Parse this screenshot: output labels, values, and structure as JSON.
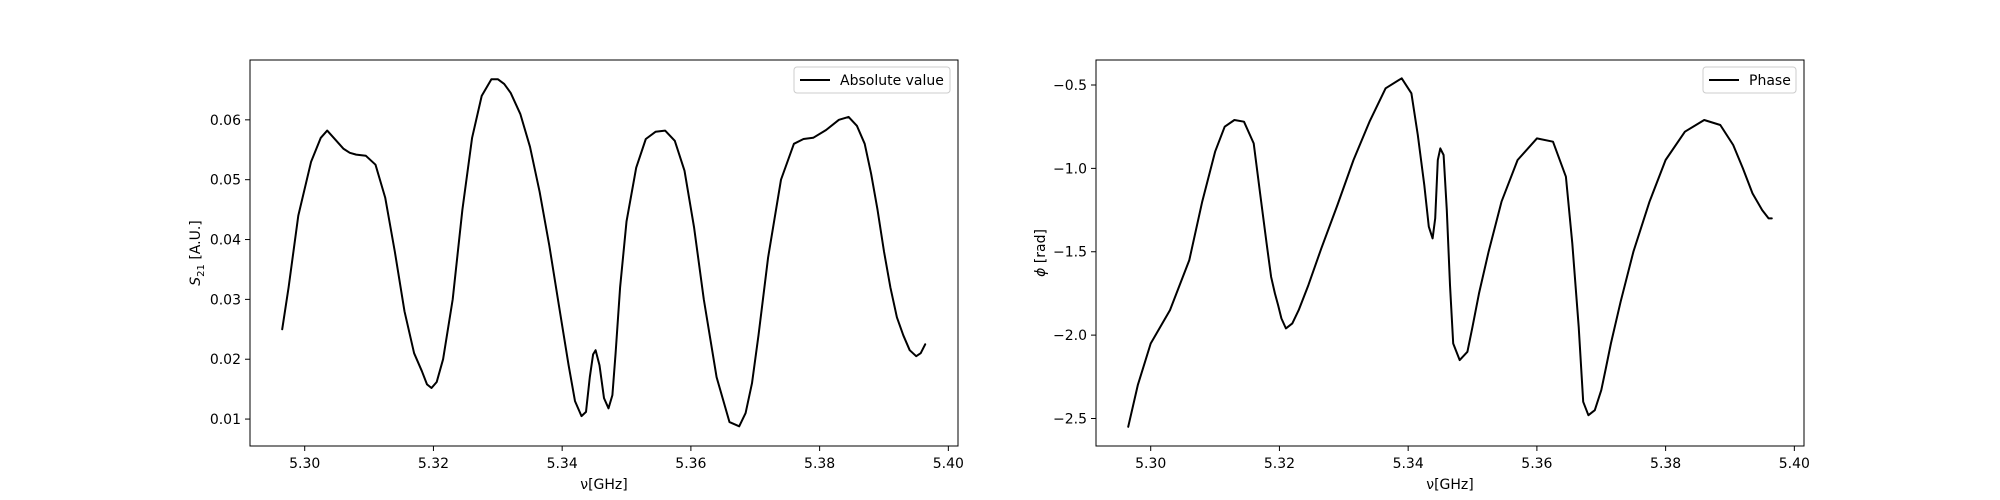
{
  "chart_data": [
    {
      "type": "line",
      "xlabel": "ν[GHz]",
      "ylabel": "S21 [A.U.]",
      "ylabel_main": "S",
      "ylabel_sub": "21",
      "ylabel_unit": " [A.U.]",
      "xlim": [
        5.2915,
        5.4015
      ],
      "ylim": [
        0.0055,
        0.07
      ],
      "xticks": [
        5.3,
        5.32,
        5.34,
        5.36,
        5.38,
        5.4
      ],
      "xtick_labels": [
        "5.30",
        "5.32",
        "5.34",
        "5.36",
        "5.38",
        "5.40"
      ],
      "yticks": [
        0.01,
        0.02,
        0.03,
        0.04,
        0.05,
        0.06
      ],
      "ytick_labels": [
        "0.01",
        "0.02",
        "0.03",
        "0.04",
        "0.05",
        "0.06"
      ],
      "legend": "Absolute value",
      "legend_loc": "upper right",
      "series": [
        {
          "name": "Absolute value",
          "color": "#000000",
          "x": [
            5.2965,
            5.2975,
            5.299,
            5.301,
            5.3025,
            5.3035,
            5.3045,
            5.306,
            5.307,
            5.308,
            5.3095,
            5.311,
            5.3125,
            5.314,
            5.3155,
            5.317,
            5.3182,
            5.319,
            5.3197,
            5.3205,
            5.3215,
            5.323,
            5.3245,
            5.326,
            5.3275,
            5.329,
            5.33,
            5.331,
            5.332,
            5.3335,
            5.335,
            5.3365,
            5.338,
            5.3395,
            5.341,
            5.342,
            5.343,
            5.3437,
            5.3443,
            5.3448,
            5.3452,
            5.3458,
            5.3465,
            5.3472,
            5.3478,
            5.3483,
            5.349,
            5.35,
            5.3515,
            5.353,
            5.3545,
            5.356,
            5.3575,
            5.359,
            5.3605,
            5.362,
            5.364,
            5.366,
            5.3675,
            5.3685,
            5.3695,
            5.3705,
            5.372,
            5.374,
            5.376,
            5.3775,
            5.379,
            5.381,
            5.383,
            5.3845,
            5.3858,
            5.387,
            5.388,
            5.389,
            5.39,
            5.391,
            5.392,
            5.393,
            5.394,
            5.395,
            5.3957,
            5.3964
          ],
          "y": [
            0.025,
            0.032,
            0.044,
            0.053,
            0.057,
            0.0582,
            0.057,
            0.0552,
            0.0545,
            0.0542,
            0.054,
            0.0525,
            0.047,
            0.038,
            0.028,
            0.021,
            0.018,
            0.0158,
            0.0152,
            0.0162,
            0.02,
            0.03,
            0.045,
            0.057,
            0.064,
            0.0668,
            0.0668,
            0.066,
            0.0645,
            0.061,
            0.0555,
            0.048,
            0.039,
            0.029,
            0.019,
            0.013,
            0.0105,
            0.0112,
            0.017,
            0.0208,
            0.0215,
            0.019,
            0.0135,
            0.0118,
            0.014,
            0.021,
            0.032,
            0.043,
            0.052,
            0.0568,
            0.058,
            0.0582,
            0.0565,
            0.0515,
            0.042,
            0.03,
            0.017,
            0.0095,
            0.0088,
            0.011,
            0.016,
            0.024,
            0.037,
            0.05,
            0.056,
            0.0568,
            0.057,
            0.0583,
            0.06,
            0.0605,
            0.059,
            0.056,
            0.051,
            0.045,
            0.038,
            0.032,
            0.027,
            0.024,
            0.0215,
            0.0205,
            0.021,
            0.0225
          ]
        }
      ]
    },
    {
      "type": "line",
      "xlabel": "ν[GHz]",
      "ylabel": "ϕ [rad]",
      "ylabel_main": "ϕ",
      "ylabel_sub": "",
      "ylabel_unit": " [rad]",
      "xlim": [
        5.2915,
        5.4015
      ],
      "ylim": [
        -2.665,
        -0.35
      ],
      "xticks": [
        5.3,
        5.32,
        5.34,
        5.36,
        5.38,
        5.4
      ],
      "xtick_labels": [
        "5.30",
        "5.32",
        "5.34",
        "5.36",
        "5.38",
        "5.40"
      ],
      "yticks": [
        -2.5,
        -2.0,
        -1.5,
        -1.0,
        -0.5
      ],
      "ytick_labels": [
        "−2.5",
        "−2.0",
        "−1.5",
        "−1.0",
        "−0.5"
      ],
      "legend": "Phase",
      "legend_loc": "upper right",
      "series": [
        {
          "name": "Phase",
          "color": "#000000",
          "x": [
            5.2965,
            5.298,
            5.3,
            5.303,
            5.306,
            5.308,
            5.31,
            5.3115,
            5.313,
            5.3145,
            5.316,
            5.317,
            5.318,
            5.3187,
            5.3193,
            5.3198,
            5.3203,
            5.321,
            5.322,
            5.323,
            5.3245,
            5.3265,
            5.329,
            5.3315,
            5.334,
            5.3365,
            5.339,
            5.3405,
            5.3415,
            5.3425,
            5.3432,
            5.3438,
            5.3442,
            5.3446,
            5.345,
            5.3455,
            5.346,
            5.3465,
            5.347,
            5.348,
            5.3492,
            5.35,
            5.351,
            5.3525,
            5.3545,
            5.357,
            5.36,
            5.3625,
            5.3645,
            5.3655,
            5.3665,
            5.3672,
            5.368,
            5.369,
            5.37,
            5.3707,
            5.3715,
            5.373,
            5.375,
            5.3775,
            5.38,
            5.383,
            5.386,
            5.3885,
            5.3905,
            5.392,
            5.3935,
            5.395,
            5.396,
            5.3965
          ],
          "y": [
            -2.55,
            -2.3,
            -2.05,
            -1.85,
            -1.55,
            -1.2,
            -0.9,
            -0.75,
            -0.71,
            -0.72,
            -0.85,
            -1.15,
            -1.45,
            -1.65,
            -1.75,
            -1.82,
            -1.9,
            -1.96,
            -1.93,
            -1.85,
            -1.7,
            -1.48,
            -1.22,
            -0.95,
            -0.72,
            -0.52,
            -0.46,
            -0.55,
            -0.8,
            -1.1,
            -1.35,
            -1.42,
            -1.3,
            -0.95,
            -0.88,
            -0.92,
            -1.25,
            -1.7,
            -2.05,
            -2.15,
            -2.1,
            -1.95,
            -1.75,
            -1.5,
            -1.2,
            -0.95,
            -0.82,
            -0.84,
            -1.05,
            -1.45,
            -1.95,
            -2.4,
            -2.48,
            -2.45,
            -2.33,
            -2.2,
            -2.05,
            -1.8,
            -1.5,
            -1.2,
            -0.95,
            -0.78,
            -0.71,
            -0.74,
            -0.86,
            -1.0,
            -1.15,
            -1.25,
            -1.3,
            -1.3
          ]
        }
      ]
    }
  ]
}
